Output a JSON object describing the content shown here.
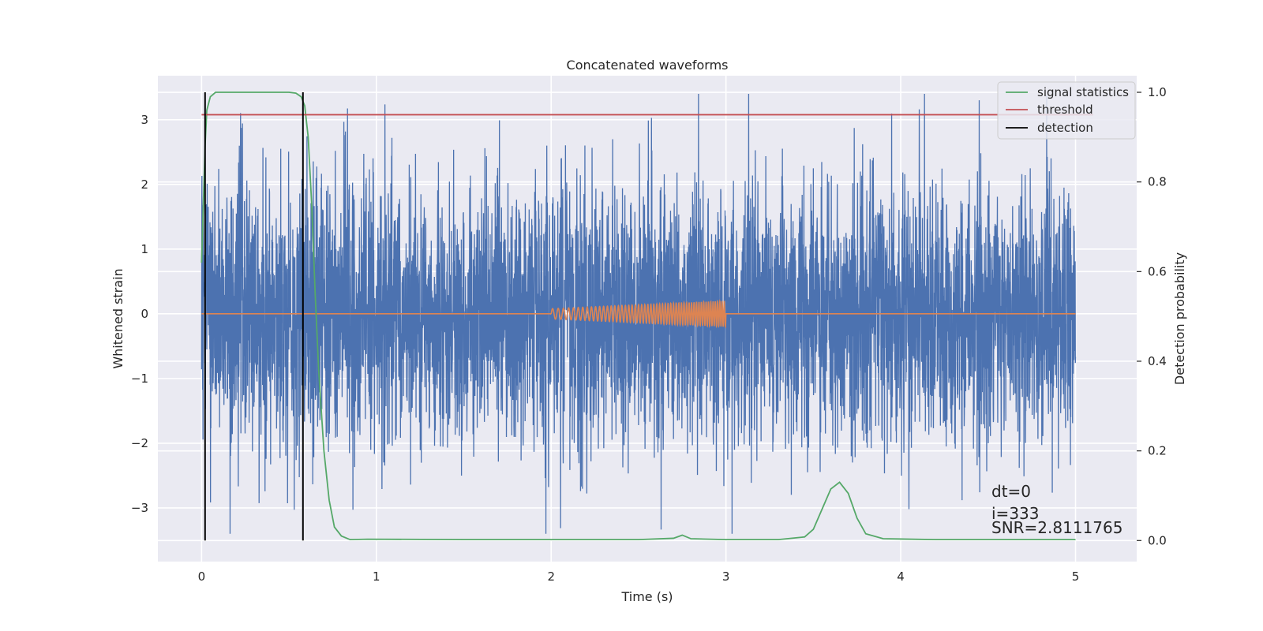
{
  "chart_data": {
    "type": "line",
    "title": "Concatenated waveforms",
    "xlabel": "Time (s)",
    "ylabel": "Whitened strain",
    "y2label": "Detection probability",
    "xlim": [
      -0.25,
      5.35
    ],
    "ylim": [
      -3.83,
      3.68
    ],
    "y2lim": [
      -0.047,
      1.037
    ],
    "xticks": [
      0,
      1,
      2,
      3,
      4,
      5
    ],
    "xtick_labels": [
      "0",
      "1",
      "2",
      "3",
      "4",
      "5"
    ],
    "yticks": [
      -3,
      -2,
      -1,
      0,
      1,
      2,
      3
    ],
    "ytick_labels": [
      "−3",
      "−2",
      "−1",
      "0",
      "1",
      "2",
      "3"
    ],
    "y2ticks": [
      0.0,
      0.2,
      0.4,
      0.6,
      0.8,
      1.0
    ],
    "y2tick_labels": [
      "0.0",
      "0.2",
      "0.4",
      "0.6",
      "0.8",
      "1.0"
    ],
    "grid": true,
    "legend_position": "top-right",
    "series": [
      {
        "color": "#4c72b0",
        "axis": "left",
        "kind": "noise",
        "x_range": [
          0,
          5
        ],
        "amplitude_typical": 1.0,
        "amplitude_max": 3.4
      },
      {
        "color": "#dd8452",
        "axis": "left",
        "kind": "chirp",
        "x_range": [
          0,
          5
        ],
        "chirp_x_range": [
          2.0,
          3.0
        ],
        "chirp_amp_start": 0.08,
        "chirp_amp_end": 0.2
      },
      {
        "name": "signal statistics",
        "color": "#55a868",
        "axis": "right",
        "x": [
          0.0,
          0.01,
          0.02,
          0.03,
          0.05,
          0.08,
          0.12,
          0.2,
          0.3,
          0.4,
          0.5,
          0.54,
          0.57,
          0.59,
          0.61,
          0.63,
          0.65,
          0.67,
          0.7,
          0.73,
          0.76,
          0.8,
          0.85,
          0.95,
          1.5,
          2.0,
          2.5,
          2.7,
          2.75,
          2.8,
          3.0,
          3.3,
          3.45,
          3.5,
          3.55,
          3.6,
          3.65,
          3.7,
          3.75,
          3.8,
          3.9,
          4.2,
          5.0
        ],
        "y": [
          0.62,
          0.75,
          0.88,
          0.96,
          0.99,
          1.0,
          1.0,
          1.0,
          1.0,
          1.0,
          1.0,
          0.998,
          0.99,
          0.97,
          0.9,
          0.75,
          0.55,
          0.38,
          0.2,
          0.09,
          0.03,
          0.01,
          0.002,
          0.003,
          0.002,
          0.002,
          0.002,
          0.005,
          0.012,
          0.004,
          0.002,
          0.002,
          0.008,
          0.025,
          0.07,
          0.115,
          0.13,
          0.105,
          0.05,
          0.015,
          0.004,
          0.002,
          0.002
        ]
      },
      {
        "name": "threshold",
        "color": "#c44e52",
        "axis": "right",
        "x": [
          0,
          5.1
        ],
        "y": [
          0.95,
          0.95
        ]
      },
      {
        "name": "detection",
        "color": "#000000",
        "axis": "right",
        "x": [
          0.02,
          0.58
        ],
        "y": [
          0.0,
          1.0
        ]
      }
    ],
    "annotations": [
      "dt=0",
      "i=333",
      "SNR=2.8111765"
    ]
  }
}
